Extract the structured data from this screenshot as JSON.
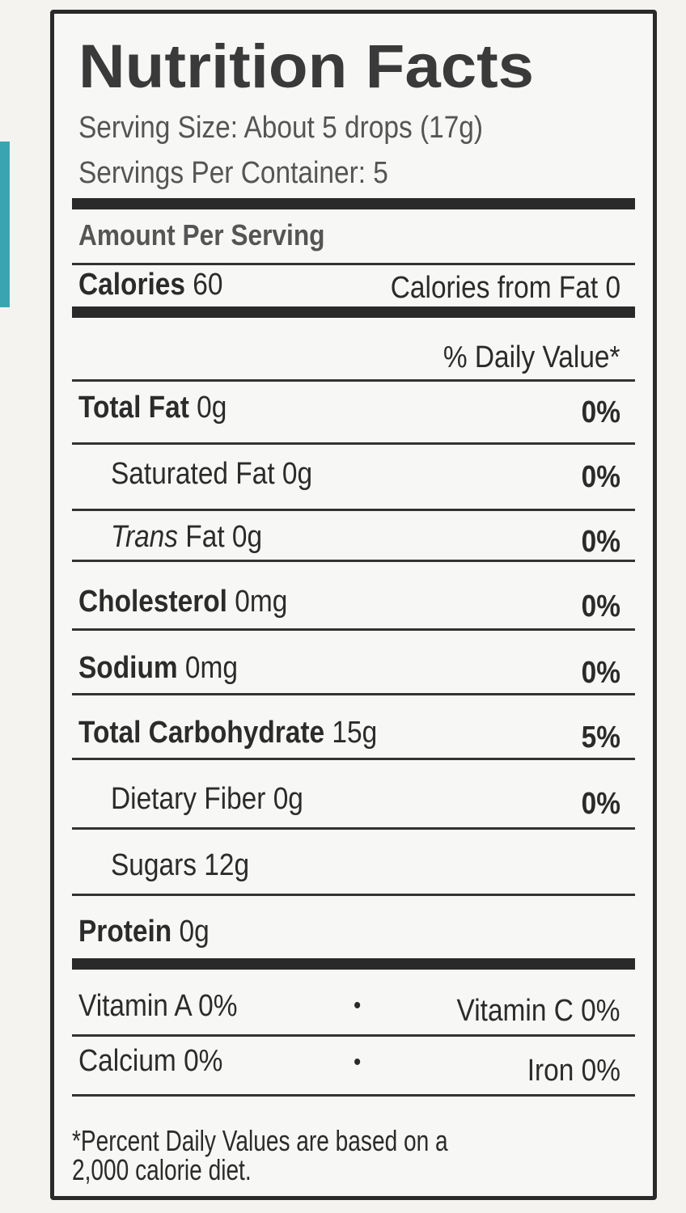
{
  "title": "Nutrition Facts",
  "serving_size": "Serving Size: About 5 drops (17g)",
  "servings_per_container": "Servings Per Container: 5",
  "amount_per_serving": "Amount Per Serving",
  "calories": {
    "label": "Calories",
    "value": "60",
    "from_fat": "Calories from Fat 0"
  },
  "daily_value_header": "% Daily Value*",
  "nutrients": [
    {
      "name": "Total Fat",
      "amount": "0g",
      "dv": "0%"
    },
    {
      "name": "Saturated Fat",
      "amount": "0g",
      "dv": "0%"
    },
    {
      "name": "Trans",
      "name2": "Fat",
      "amount": "0g",
      "dv": "0%"
    },
    {
      "name": "Cholesterol",
      "amount": "0mg",
      "dv": "0%"
    },
    {
      "name": "Sodium",
      "amount": "0mg",
      "dv": "0%"
    },
    {
      "name": "Total Carbohydrate",
      "amount": "15g",
      "dv": "5%"
    },
    {
      "name": "Dietary Fiber",
      "amount": "0g",
      "dv": "0%"
    },
    {
      "name": "Sugars",
      "amount": "12g"
    },
    {
      "name": "Protein",
      "amount": "0g"
    }
  ],
  "vitamins": {
    "vitamin_a": "Vitamin A 0%",
    "vitamin_c": "Vitamin C 0%",
    "calcium": "Calcium 0%",
    "iron": "Iron 0%",
    "separator": "•"
  },
  "footnote": "*Percent Daily Values are based on a 2,000 calorie diet.",
  "colors": {
    "accent_teal": "#3aa5b0"
  }
}
